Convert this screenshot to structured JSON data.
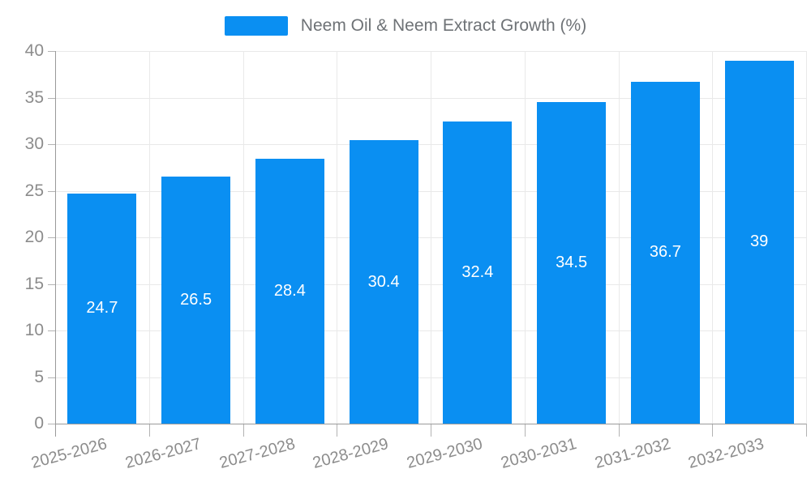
{
  "chart_data": {
    "type": "bar",
    "title": "Neem Oil & Neem Extract Growth (%)",
    "legend_entries": [
      "Neem Oil & Neem Extract Growth (%)"
    ],
    "legend_position": "top",
    "categories": [
      "2025-2026",
      "2026-2027",
      "2027-2028",
      "2028-2029",
      "2029-2030",
      "2030-2031",
      "2031-2032",
      "2032-2033"
    ],
    "series": [
      {
        "name": "Neem Oil & Neem Extract Growth (%)",
        "values": [
          24.7,
          26.5,
          28.4,
          30.4,
          32.4,
          34.5,
          36.7,
          39
        ]
      }
    ],
    "data_labels": [
      "24.7",
      "26.5",
      "28.4",
      "30.4",
      "32.4",
      "34.5",
      "36.7",
      "39"
    ],
    "xlabel": "",
    "ylabel": "",
    "ylim": [
      0,
      40
    ],
    "yticks": [
      0,
      5,
      10,
      15,
      20,
      25,
      30,
      35,
      40
    ],
    "grid": true,
    "x_label_rotation_deg": -15,
    "colors": {
      "bar": "#0a8ff2",
      "bar_label": "#ffffff",
      "axis_text": "#8c8c8c",
      "legend_text": "#6e7276",
      "gridline": "#e9e9e9",
      "axis_line": "#9a9a9a",
      "background": "#ffffff"
    }
  }
}
